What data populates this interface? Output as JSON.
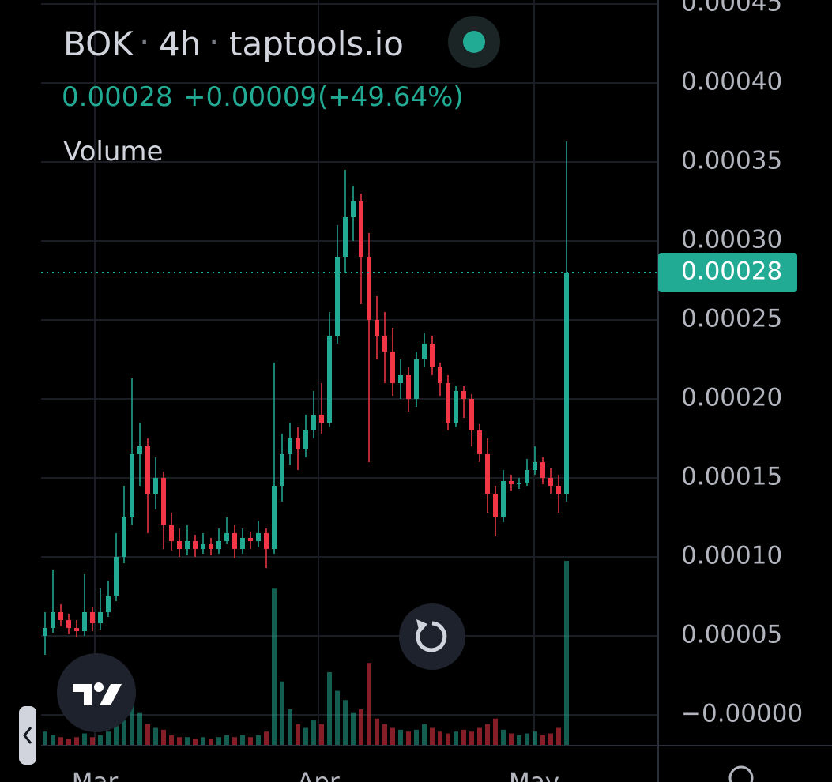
{
  "header": {
    "symbol": "BOK",
    "interval": "4h",
    "source": "taptools.io",
    "change": "+0.00009",
    "change_percent": "(+49.64%)"
  },
  "chart_data": {
    "type": "candlestick",
    "volume_label": "Volume",
    "up_color": "#22ab94",
    "down_color": "#f23645",
    "last_price": {
      "value": 0.00028,
      "label": "0.00028"
    },
    "open": [
      5e-05,
      5.5e-05,
      6.5e-05,
      6e-05,
      5.5e-05,
      5.3e-05,
      6.5e-05,
      5.8e-05,
      6.5e-05,
      7.5e-05,
      0.0001,
      0.000125,
      0.000165,
      0.00017,
      0.00014,
      0.00015,
      0.00012,
      0.00011,
      0.000105,
      0.00011,
      0.000105,
      0.000108,
      0.000105,
      0.00011,
      0.000115,
      0.000105,
      0.000112,
      0.00011,
      0.000115,
      0.000105,
      0.000145,
      0.000165,
      0.000175,
      0.000168,
      0.00018,
      0.00019,
      0.000185,
      0.00024,
      0.00029,
      0.000315,
      0.000325,
      0.00029,
      0.00025,
      0.00024,
      0.00023,
      0.00021,
      0.000215,
      0.0002,
      0.000225,
      0.000235,
      0.00022,
      0.00021,
      0.000185,
      0.000205,
      0.0002,
      0.00018,
      0.000165,
      0.00014,
      0.000125,
      0.000148,
      0.000146,
      0.000147,
      0.000155,
      0.00016,
      0.00015,
      0.000145,
      0.00014
    ],
    "high": [
      6.5e-05,
      9.2e-05,
      7e-05,
      6.4e-05,
      6e-05,
      8.9e-05,
      6.8e-05,
      8e-05,
      8.5e-05,
      0.000115,
      0.000145,
      0.000213,
      0.000185,
      0.000175,
      0.000163,
      0.000154,
      0.000128,
      0.000118,
      0.00012,
      0.000114,
      0.000115,
      0.000112,
      0.000118,
      0.000125,
      0.00012,
      0.000118,
      0.000116,
      0.000123,
      0.000118,
      0.000223,
      0.000178,
      0.000185,
      0.000182,
      0.00019,
      0.000205,
      0.00021,
      0.000255,
      0.00031,
      0.000345,
      0.000335,
      0.00033,
      0.000305,
      0.000265,
      0.000255,
      0.000245,
      0.000225,
      0.00022,
      0.00023,
      0.000242,
      0.00024,
      0.000223,
      0.000215,
      0.000208,
      0.000208,
      0.000203,
      0.000184,
      0.000175,
      0.000145,
      0.000155,
      0.000152,
      0.00015,
      0.000162,
      0.00017,
      0.000163,
      0.000156,
      0.000152,
      0.000363
    ],
    "low": [
      3.8e-05,
      5.2e-05,
      5.6e-05,
      5.1e-05,
      4.9e-05,
      5e-05,
      5.3e-05,
      5.4e-05,
      6.2e-05,
      7.2e-05,
      9.6e-05,
      0.00012,
      0.000145,
      0.000115,
      0.00013,
      0.000105,
      0.000104,
      0.0001,
      0.000101,
      0.0001,
      0.000102,
      0.000101,
      0.000102,
      0.000108,
      9.9e-05,
      0.000102,
      0.000105,
      0.000106,
      9.3e-05,
      0.000102,
      0.000135,
      0.000158,
      0.000155,
      0.000163,
      0.000175,
      0.000178,
      0.000182,
      0.000235,
      0.00028,
      0.0003,
      0.00026,
      0.00016,
      0.000225,
      0.00021,
      0.000202,
      0.0002,
      0.000192,
      0.000195,
      0.00022,
      0.000215,
      0.000202,
      0.00018,
      0.000182,
      0.000188,
      0.00017,
      0.00016,
      0.000128,
      0.000113,
      0.000122,
      0.000142,
      0.000143,
      0.000145,
      0.000152,
      0.000146,
      0.00014,
      0.000128,
      0.000135
    ],
    "close": [
      5.5e-05,
      6.5e-05,
      6e-05,
      5.5e-05,
      5.3e-05,
      6.5e-05,
      5.8e-05,
      6.5e-05,
      7.5e-05,
      0.0001,
      0.000125,
      0.000165,
      0.00017,
      0.00014,
      0.00015,
      0.00012,
      0.00011,
      0.000105,
      0.00011,
      0.000105,
      0.000108,
      0.000105,
      0.00011,
      0.000115,
      0.000105,
      0.000112,
      0.00011,
      0.000115,
      0.000105,
      0.000145,
      0.000165,
      0.000175,
      0.000168,
      0.00018,
      0.00019,
      0.000185,
      0.00024,
      0.00029,
      0.000315,
      0.000325,
      0.00029,
      0.00025,
      0.00024,
      0.00023,
      0.00021,
      0.000215,
      0.0002,
      0.000225,
      0.000235,
      0.00022,
      0.00021,
      0.000185,
      0.000205,
      0.0002,
      0.00018,
      0.000165,
      0.00014,
      0.000125,
      0.000148,
      0.000146,
      0.000147,
      0.000155,
      0.00016,
      0.00015,
      0.000145,
      0.00014,
      0.00028
    ],
    "volume": [
      8,
      6,
      5,
      4,
      5,
      7,
      5,
      6,
      8,
      12,
      14,
      30,
      18,
      12,
      10,
      9,
      6,
      5,
      5,
      4,
      5,
      4,
      5,
      6,
      5,
      6,
      5,
      6,
      8,
      85,
      35,
      20,
      12,
      10,
      14,
      12,
      40,
      30,
      25,
      18,
      20,
      45,
      15,
      12,
      10,
      9,
      8,
      9,
      12,
      10,
      8,
      7,
      8,
      9,
      8,
      10,
      12,
      15,
      9,
      7,
      6,
      7,
      8,
      6,
      7,
      10,
      100
    ],
    "xlim": [
      -0.5,
      77.5
    ],
    "xticks": [
      {
        "value": 6.3,
        "label": "Mar"
      },
      {
        "value": 34.6,
        "label": "Apr"
      },
      {
        "value": 61.9,
        "label": "May"
      }
    ],
    "ylim": [
      -2e-05,
      0.00045
    ],
    "yticks": [
      {
        "value": 0,
        "label": "−0.00000"
      },
      {
        "value": 5e-05,
        "label": "0.00005"
      },
      {
        "value": 0.0001,
        "label": "0.00010"
      },
      {
        "value": 0.00015,
        "label": "0.00015"
      },
      {
        "value": 0.0002,
        "label": "0.00020"
      },
      {
        "value": 0.00025,
        "label": "0.00025"
      },
      {
        "value": 0.0003,
        "label": "0.00030"
      },
      {
        "value": 0.00035,
        "label": "0.00035"
      },
      {
        "value": 0.0004,
        "label": "0.00040"
      },
      {
        "value": 0.00045,
        "label": "0.00045"
      }
    ],
    "grid": true
  }
}
